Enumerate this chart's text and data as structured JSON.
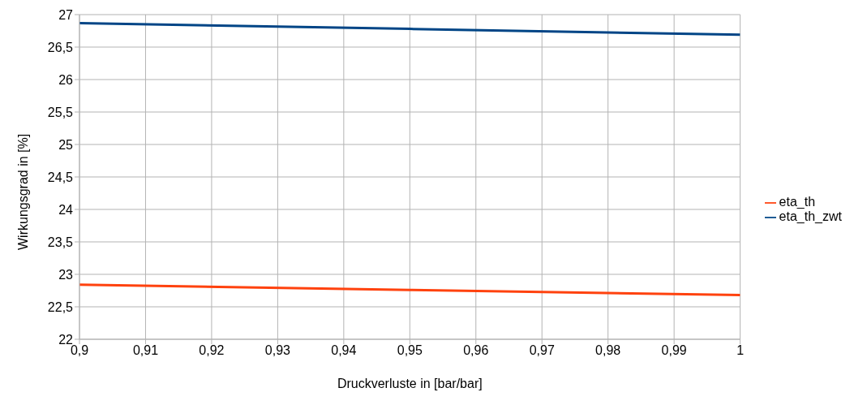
{
  "chart_data": {
    "type": "line",
    "xlabel": "Druckverluste in [bar/bar]",
    "ylabel": "Wirkungsgrad in [%]",
    "x": [
      0.9,
      0.95,
      1
    ],
    "series": [
      {
        "name": "eta_th_zwt",
        "color": "#004586",
        "values": [
          26.87,
          26.78,
          26.69
        ]
      },
      {
        "name": "eta_th",
        "color": "#ff420e",
        "values": [
          22.84,
          22.76,
          22.68
        ]
      }
    ],
    "xlim": [
      0.9,
      1
    ],
    "xticks": [
      {
        "value": 0.9,
        "label": "0,9"
      },
      {
        "value": 0.91,
        "label": "0,91"
      },
      {
        "value": 0.92,
        "label": "0,92"
      },
      {
        "value": 0.93,
        "label": "0,93"
      },
      {
        "value": 0.94,
        "label": "0,94"
      },
      {
        "value": 0.95,
        "label": "0,95"
      },
      {
        "value": 0.96,
        "label": "0,96"
      },
      {
        "value": 0.97,
        "label": "0,97"
      },
      {
        "value": 0.98,
        "label": "0,98"
      },
      {
        "value": 0.99,
        "label": "0,99"
      },
      {
        "value": 1,
        "label": "1"
      }
    ],
    "ylim": [
      22,
      27
    ],
    "yticks": [
      22,
      {
        "value": 22.5,
        "label": "22,5"
      },
      23,
      {
        "value": 23.5,
        "label": "23,5"
      },
      24,
      {
        "value": 24.5,
        "label": "24,5"
      },
      25,
      {
        "value": 25.5,
        "label": "25,5"
      },
      26,
      {
        "value": 26.5,
        "label": "26,5"
      },
      27
    ],
    "grid": true,
    "legend": "right",
    "marker": "none",
    "line_style": "solid"
  }
}
